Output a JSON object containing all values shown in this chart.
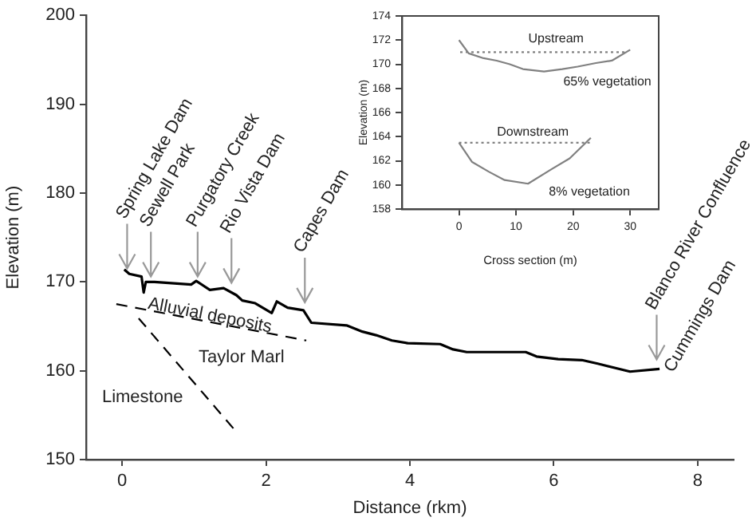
{
  "chart_data": [
    {
      "type": "line",
      "xlabel": "Distance (rkm)",
      "ylabel": "Elevation (m)",
      "xlim": [
        -0.5,
        8.5
      ],
      "xticks": [
        0,
        2,
        4,
        6,
        8
      ],
      "ylim": [
        150,
        200
      ],
      "yticks": [
        150,
        160,
        170,
        180,
        190,
        200
      ],
      "grid": false,
      "legend": false,
      "marker": "none",
      "series": [
        {
          "color": "#000000",
          "line_style": "solid",
          "x": [
            0.03,
            0.1,
            0.27,
            0.3,
            0.33,
            0.45,
            0.96,
            1.03,
            1.22,
            1.41,
            1.59,
            1.67,
            1.85,
            2.08,
            2.15,
            2.3,
            2.52,
            2.63,
            3.12,
            3.34,
            3.53,
            3.75,
            3.97,
            4.42,
            4.6,
            4.79,
            5.61,
            5.76,
            6.06,
            6.39,
            6.61,
            7.06,
            7.47
          ],
          "values": [
            171.4,
            170.9,
            170.6,
            168.8,
            170.0,
            170.0,
            169.7,
            170.1,
            169.1,
            169.3,
            168.5,
            167.9,
            167.6,
            166.5,
            167.8,
            167.1,
            166.8,
            165.4,
            165.1,
            164.4,
            164.0,
            163.4,
            163.1,
            163.0,
            162.4,
            162.1,
            162.1,
            161.6,
            161.3,
            161.2,
            160.8,
            159.9,
            160.2
          ]
        },
        {
          "color": "#000000",
          "line_style": "dashed",
          "x": [
            -0.08,
            2.56
          ],
          "values": [
            167.5,
            163.4
          ]
        },
        {
          "color": "#000000",
          "line_style": "dashed",
          "x": [
            0.23,
            1.59
          ],
          "values": [
            165.9,
            153.1
          ]
        }
      ],
      "annotations": [
        {
          "text": "Spring Lake Dam",
          "x": 0.07,
          "y": 171.5
        },
        {
          "text": "Sewell Park",
          "x": 0.4,
          "y": 170.6
        },
        {
          "text": "Purgatory Creek",
          "x": 1.05,
          "y": 170.6
        },
        {
          "text": "Rio Vista Dam",
          "x": 1.52,
          "y": 169.9
        },
        {
          "text": "Capes Dam",
          "x": 2.54,
          "y": 167.7
        },
        {
          "text": "Blanco River Confluence",
          "x": 7.43,
          "y": 160.2
        },
        "Cummings Dam",
        {
          "text": "Alluvial deposits",
          "x": 1.22,
          "y": 166.2
        },
        "Taylor Marl",
        "Limestone"
      ]
    },
    {
      "type": "line",
      "xlabel": "Cross section (m)",
      "ylabel": "Elevation (m)",
      "xlim": [
        -10,
        35
      ],
      "xticks": [
        0,
        10,
        20,
        30
      ],
      "ylim": [
        158,
        174
      ],
      "yticks": [
        158,
        160,
        162,
        164,
        166,
        168,
        170,
        172,
        174
      ],
      "grid": false,
      "legend": false,
      "marker": "none",
      "series": [
        {
          "color": "#808080",
          "line_style": "solid",
          "x": [
            0,
            1.7,
            4.3,
            6.6,
            8.9,
            11.2,
            14.9,
            18.1,
            20.8,
            24.0,
            26.8,
            30.0
          ],
          "values": [
            172.0,
            170.9,
            170.5,
            170.3,
            170.0,
            169.6,
            169.4,
            169.6,
            169.8,
            170.1,
            170.3,
            171.2
          ]
        },
        {
          "color": "#808080",
          "line_style": "dotted",
          "x": [
            0.2,
            29.5
          ],
          "values": [
            171.0,
            171.0
          ]
        },
        {
          "color": "#808080",
          "line_style": "solid",
          "x": [
            0,
            2.3,
            5.2,
            8.0,
            12.1,
            16.2,
            19.4,
            23.1
          ],
          "values": [
            163.5,
            161.9,
            161.1,
            160.4,
            160.1,
            161.3,
            162.2,
            163.9
          ]
        },
        {
          "color": "#808080",
          "line_style": "dotted",
          "x": [
            0,
            23.1
          ],
          "values": [
            163.5,
            163.5
          ]
        }
      ],
      "annotations": [
        "Upstream",
        "65% vegetation",
        "Downstream",
        "8% vegetation"
      ]
    }
  ]
}
